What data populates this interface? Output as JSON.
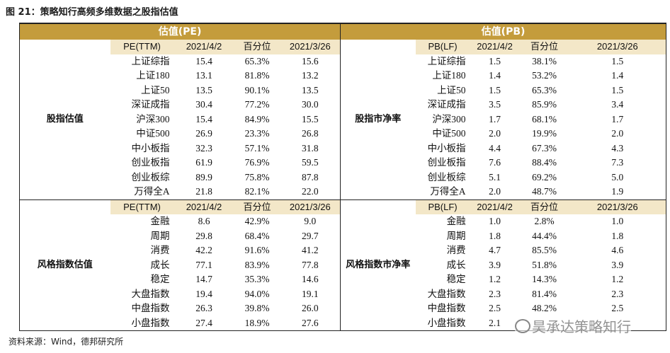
{
  "figure_title": "图 21：策略知行高频多维数据之股指估值",
  "table": {
    "headers": [
      "估值(PE)",
      "估值(PB)"
    ],
    "sections": [
      {
        "pe_label": "股指估值",
        "pb_label": "股指市净率",
        "pe_columns": [
          "PE(TTM)",
          "2021/4/2",
          "百分位",
          "2021/3/26"
        ],
        "pb_columns": [
          "PB(LF)",
          "2021/4/2",
          "百分位",
          "2021/3/26"
        ],
        "pe_rows": [
          [
            "上证综指",
            "15.4",
            "65.3%",
            "15.6"
          ],
          [
            "上证180",
            "13.1",
            "81.8%",
            "13.2"
          ],
          [
            "上证50",
            "13.5",
            "90.1%",
            "13.5"
          ],
          [
            "深证成指",
            "30.4",
            "77.2%",
            "30.0"
          ],
          [
            "沪深300",
            "15.4",
            "84.9%",
            "15.5"
          ],
          [
            "中证500",
            "26.9",
            "23.3%",
            "26.8"
          ],
          [
            "中小板指",
            "32.3",
            "57.1%",
            "31.8"
          ],
          [
            "创业板指",
            "61.9",
            "76.9%",
            "59.5"
          ],
          [
            "创业板综",
            "89.9",
            "75.8%",
            "87.8"
          ],
          [
            "万得全A",
            "21.8",
            "82.1%",
            "22.0"
          ]
        ],
        "pb_rows": [
          [
            "上证综指",
            "1.5",
            "38.1%",
            "1.5"
          ],
          [
            "上证180",
            "1.4",
            "53.2%",
            "1.4"
          ],
          [
            "上证50",
            "1.5",
            "65.3%",
            "1.5"
          ],
          [
            "深证成指",
            "3.5",
            "85.9%",
            "3.4"
          ],
          [
            "沪深300",
            "1.7",
            "68.1%",
            "1.7"
          ],
          [
            "中证500",
            "2.0",
            "19.9%",
            "2.0"
          ],
          [
            "中小板指",
            "4.4",
            "67.3%",
            "4.3"
          ],
          [
            "创业板指",
            "7.6",
            "88.4%",
            "7.3"
          ],
          [
            "创业板综",
            "5.1",
            "69.2%",
            "5.0"
          ],
          [
            "万得全A",
            "2.0",
            "48.7%",
            "1.9"
          ]
        ]
      },
      {
        "pe_label": "风格指数估值",
        "pb_label": "风格指数市净率",
        "pe_columns": [
          "PE(TTM)",
          "2021/4/2",
          "百分位",
          "2021/3/26"
        ],
        "pb_columns": [
          "PB(LF)",
          "2021/4/2",
          "百分位",
          "2021/3/26"
        ],
        "pe_rows": [
          [
            "金融",
            "8.6",
            "42.9%",
            "9.0"
          ],
          [
            "周期",
            "29.8",
            "68.4%",
            "29.7"
          ],
          [
            "消费",
            "42.2",
            "91.6%",
            "41.2"
          ],
          [
            "成长",
            "77.1",
            "83.9%",
            "77.8"
          ],
          [
            "稳定",
            "14.7",
            "35.3%",
            "14.6"
          ],
          [
            "大盘指数",
            "19.4",
            "94.0%",
            "19.1"
          ],
          [
            "中盘指数",
            "26.3",
            "39.8%",
            "26.0"
          ],
          [
            "小盘指数",
            "27.4",
            "18.9%",
            "27.6"
          ]
        ],
        "pb_rows": [
          [
            "金融",
            "1.0",
            "2.8%",
            "1.0"
          ],
          [
            "周期",
            "1.8",
            "44.4%",
            "1.8"
          ],
          [
            "消费",
            "4.7",
            "85.5%",
            "4.6"
          ],
          [
            "成长",
            "3.9",
            "51.8%",
            "3.9"
          ],
          [
            "稳定",
            "1.2",
            "14.3%",
            "1.2"
          ],
          [
            "大盘指数",
            "2.3",
            "81.4%",
            "2.3"
          ],
          [
            "中盘指数",
            "2.5",
            "48.2%",
            "2.5"
          ],
          [
            "小盘指数",
            "2.1",
            null,
            null
          ]
        ]
      }
    ]
  },
  "source": "资料来源：Wind，德邦研究所",
  "watermark": "昊承达策略知行"
}
